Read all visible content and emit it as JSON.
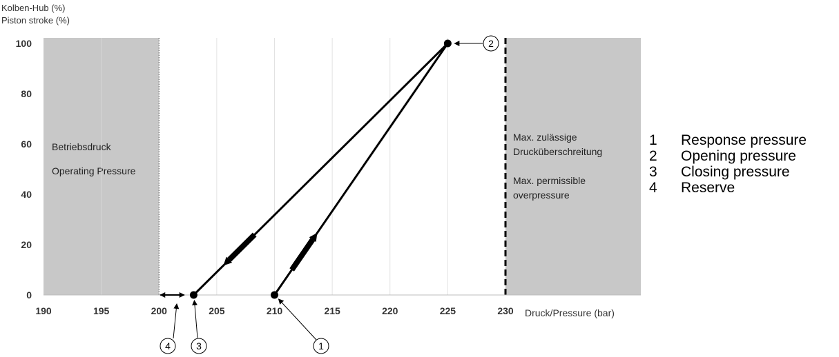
{
  "chart_data": {
    "type": "line",
    "ylabel_de": "Kolben-Hub (%)",
    "ylabel_en": "Piston stroke  (%)",
    "xlabel": "Druck/Pressure (bar)",
    "xlim": [
      190,
      230
    ],
    "ylim": [
      0,
      100
    ],
    "x_ticks": [
      "190",
      "195",
      "200",
      "205",
      "210",
      "215",
      "220",
      "225",
      "230"
    ],
    "y_ticks": [
      "0",
      "20",
      "40",
      "60",
      "80",
      "100"
    ],
    "grid": "vertical",
    "regions": [
      {
        "x_from": 190,
        "x_to": 200,
        "color": "#c8c8c8",
        "lines": [
          "Betriebsdruck",
          "",
          "Operating Pressure"
        ]
      },
      {
        "x_from": 230,
        "x_to": 242,
        "color": "#c8c8c8",
        "lines": [
          "Max. zulässige",
          "Drucküberschreitung",
          "",
          "Max. permissible",
          "overpressure"
        ]
      }
    ],
    "series": [
      {
        "role": "opening",
        "points": [
          {
            "x": 210,
            "y": 0
          },
          {
            "x": 225,
            "y": 100
          }
        ]
      },
      {
        "role": "closing",
        "points": [
          {
            "x": 225,
            "y": 100
          },
          {
            "x": 203,
            "y": 0
          }
        ]
      }
    ],
    "markers": [
      {
        "label": "1",
        "x": 210,
        "y": 0
      },
      {
        "label": "2",
        "x": 225,
        "y": 100
      },
      {
        "label": "3",
        "x": 203,
        "y": 0
      },
      {
        "label": "4",
        "x_from": 200,
        "x_to": 202
      }
    ],
    "line_color": "#000000"
  },
  "legend": [
    {
      "num": "1",
      "text": "Response pressure"
    },
    {
      "num": "2",
      "text": "Opening pressure"
    },
    {
      "num": "3",
      "text": "Closing pressure"
    },
    {
      "num": "4",
      "text": "Reserve"
    }
  ]
}
